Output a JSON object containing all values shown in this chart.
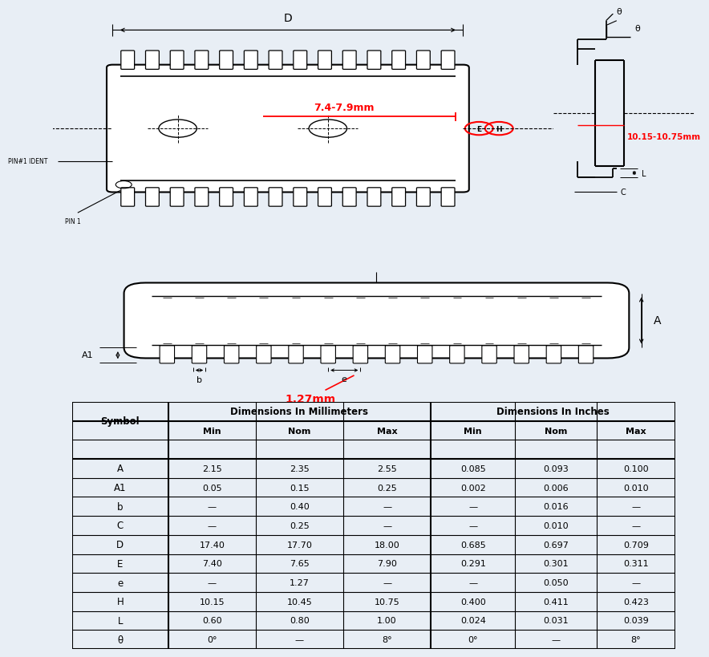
{
  "bg_color": "#e8eef5",
  "white": "#ffffff",
  "black": "#000000",
  "red": "#cc0000",
  "dim_label_7": "7.4-7.9mm",
  "dim_label_10": "10.15-10.75mm",
  "dim_label_127": "1.27mm",
  "table_data": {
    "symbols": [
      "A",
      "A1",
      "b",
      "C",
      "D",
      "E",
      "e",
      "H",
      "L",
      "θ"
    ],
    "mm_min": [
      "2.15",
      "0.05",
      "—",
      "—",
      "17.40",
      "7.40",
      "—",
      "10.15",
      "0.60",
      "0°"
    ],
    "mm_nom": [
      "2.35",
      "0.15",
      "0.40",
      "0.25",
      "17.70",
      "7.65",
      "1.27",
      "10.45",
      "0.80",
      "—"
    ],
    "mm_max": [
      "2.55",
      "0.25",
      "—",
      "—",
      "18.00",
      "7.90",
      "—",
      "10.75",
      "1.00",
      "8°"
    ],
    "in_min": [
      "0.085",
      "0.002",
      "—",
      "—",
      "0.685",
      "0.291",
      "—",
      "0.400",
      "0.024",
      "0°"
    ],
    "in_nom": [
      "0.093",
      "0.006",
      "0.016",
      "0.010",
      "0.697",
      "0.301",
      "0.050",
      "0.411",
      "0.031",
      "—"
    ],
    "in_max": [
      "0.100",
      "0.010",
      "—",
      "—",
      "0.709",
      "0.311",
      "—",
      "0.423",
      "0.039",
      "8°"
    ]
  }
}
